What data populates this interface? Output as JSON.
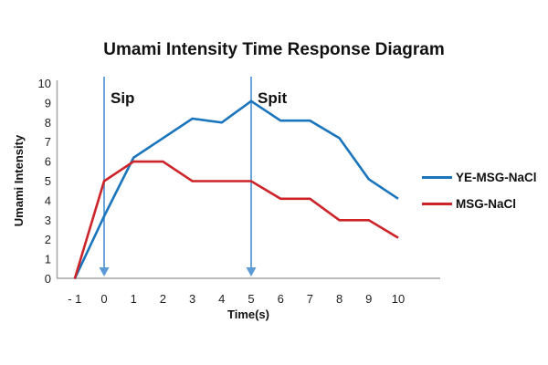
{
  "chart_data": {
    "type": "line",
    "title": "Umami Intensity Time Response Diagram",
    "xlabel": "Time(s)",
    "ylabel": "Umami Intensity",
    "x": [
      -1,
      0,
      1,
      2,
      3,
      4,
      5,
      6,
      7,
      8,
      9,
      10
    ],
    "x_tick_labels": [
      "- 1",
      "0",
      "1",
      "2",
      "3",
      "4",
      "5",
      "6",
      "7",
      "8",
      "9",
      "10"
    ],
    "y_ticks": [
      0,
      1,
      2,
      3,
      4,
      5,
      6,
      7,
      8,
      9,
      10
    ],
    "ylim": [
      0,
      10
    ],
    "xlim": [
      -1,
      10
    ],
    "grid": false,
    "legend_position": "right",
    "series": [
      {
        "name": "YE-MSG-NaCl",
        "color": "#1b75bc",
        "values": [
          0,
          3.2,
          6.2,
          7.2,
          8.2,
          8.0,
          9.1,
          8.1,
          8.1,
          7.2,
          5.1,
          4.1
        ]
      },
      {
        "name": "MSG-NaCl",
        "color": "#cc2428",
        "values": [
          0,
          5.0,
          6.0,
          6.0,
          5.0,
          5.0,
          5.0,
          4.1,
          4.1,
          3.0,
          3.0,
          2.1
        ]
      }
    ],
    "annotations": [
      {
        "label": "Sip",
        "x": 0
      },
      {
        "label": "Spit",
        "x": 5
      }
    ],
    "colors": {
      "annotation_arrow": "#5b9bd5",
      "axis_line": "#a6a6a6"
    }
  }
}
